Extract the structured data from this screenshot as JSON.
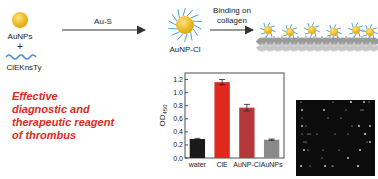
{
  "labels": {
    "aunps": "AuNPs",
    "plus": "+",
    "peptide": "ClEKnsTy",
    "arrow1": "Au-S",
    "conjugate": "AuNP-Cl",
    "arrow2": [
      "Binding on",
      "collagen"
    ],
    "claim": [
      "Effective",
      "diagnostic and",
      "therapeutic reagent",
      "of thrombus"
    ]
  },
  "chart_data": {
    "type": "bar",
    "y_label": "OD450",
    "categories": [
      "water",
      "ClE",
      "AuNP-Cl",
      "AuNPs"
    ],
    "values": [
      0.29,
      1.16,
      0.77,
      0.28
    ],
    "errors": [
      0.01,
      0.04,
      0.05,
      0.01
    ],
    "colors": [
      "#1a1a1a",
      "#e0281e",
      "#b5393b",
      "#8a8a8a"
    ],
    "ylim": [
      0,
      1.3
    ],
    "yticks": [
      {
        "value": 0,
        "label": "0.0"
      },
      0.2,
      0.4,
      0.6,
      0.8,
      {
        "value": 1,
        "label": "1.0"
      },
      1.2
    ]
  }
}
